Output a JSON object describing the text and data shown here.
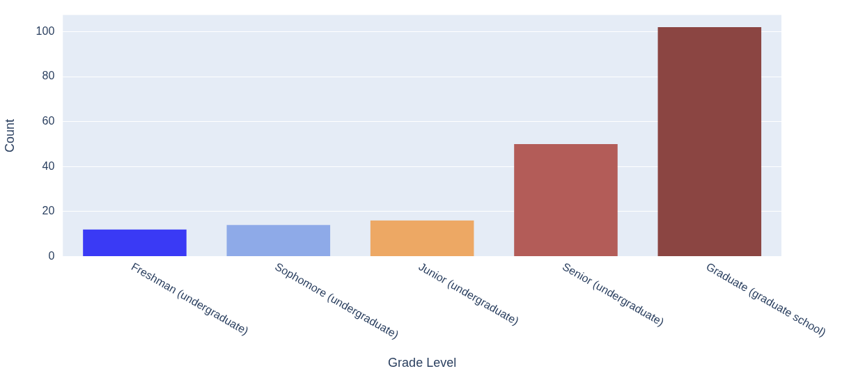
{
  "chart_data": {
    "type": "bar",
    "xlabel": "Grade Level",
    "ylabel": "Count",
    "categories": [
      "Freshman (undergraduate)",
      "Sophomore (undergraduate)",
      "Junior (undergraduate)",
      "Senior (undergraduate)",
      "Graduate (graduate school)"
    ],
    "values": [
      12,
      14,
      16,
      50,
      102
    ],
    "colors": [
      "#3a3af5",
      "#8eaae8",
      "#eda864",
      "#b35c58",
      "#8b4542"
    ],
    "ylim": [
      0,
      107.4
    ],
    "yticks": [
      0,
      20,
      40,
      60,
      80,
      100
    ],
    "grid": "y",
    "legend": false
  }
}
